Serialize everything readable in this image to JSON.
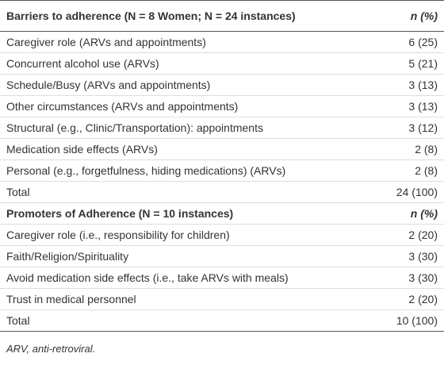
{
  "table": {
    "sections": [
      {
        "header": [
          "Barriers to adherence (N = 8 Women; N = 24 instances)",
          "n (%)"
        ],
        "rows": [
          [
            "Caregiver role (ARVs and appointments)",
            "6 (25)"
          ],
          [
            "Concurrent alcohol use (ARVs)",
            "5 (21)"
          ],
          [
            "Schedule/Busy (ARVs and appointments)",
            "3 (13)"
          ],
          [
            "Other circumstances (ARVs and appointments)",
            "3 (13)"
          ],
          [
            "Structural (e.g., Clinic/Transportation): appointments",
            "3 (12)"
          ],
          [
            "Medication side effects (ARVs)",
            "2 (8)"
          ],
          [
            "Personal (e.g., forgetfulness, hiding medications) (ARVs)",
            "2 (8)"
          ],
          [
            "Total",
            "24 (100)"
          ]
        ]
      },
      {
        "header": [
          "Promoters of Adherence (N = 10 instances)",
          "n (%)"
        ],
        "rows": [
          [
            "Caregiver role (i.e., responsibility for children)",
            "2 (20)"
          ],
          [
            "Faith/Religion/Spirituality",
            "3 (30)"
          ],
          [
            "Avoid medication side effects (i.e., take ARVs with meals)",
            "3 (30)"
          ],
          [
            "Trust in medical personnel",
            "2 (20)"
          ],
          [
            "Total",
            "10 (100)"
          ]
        ]
      }
    ]
  },
  "footnote": "ARV, anti-retroviral."
}
